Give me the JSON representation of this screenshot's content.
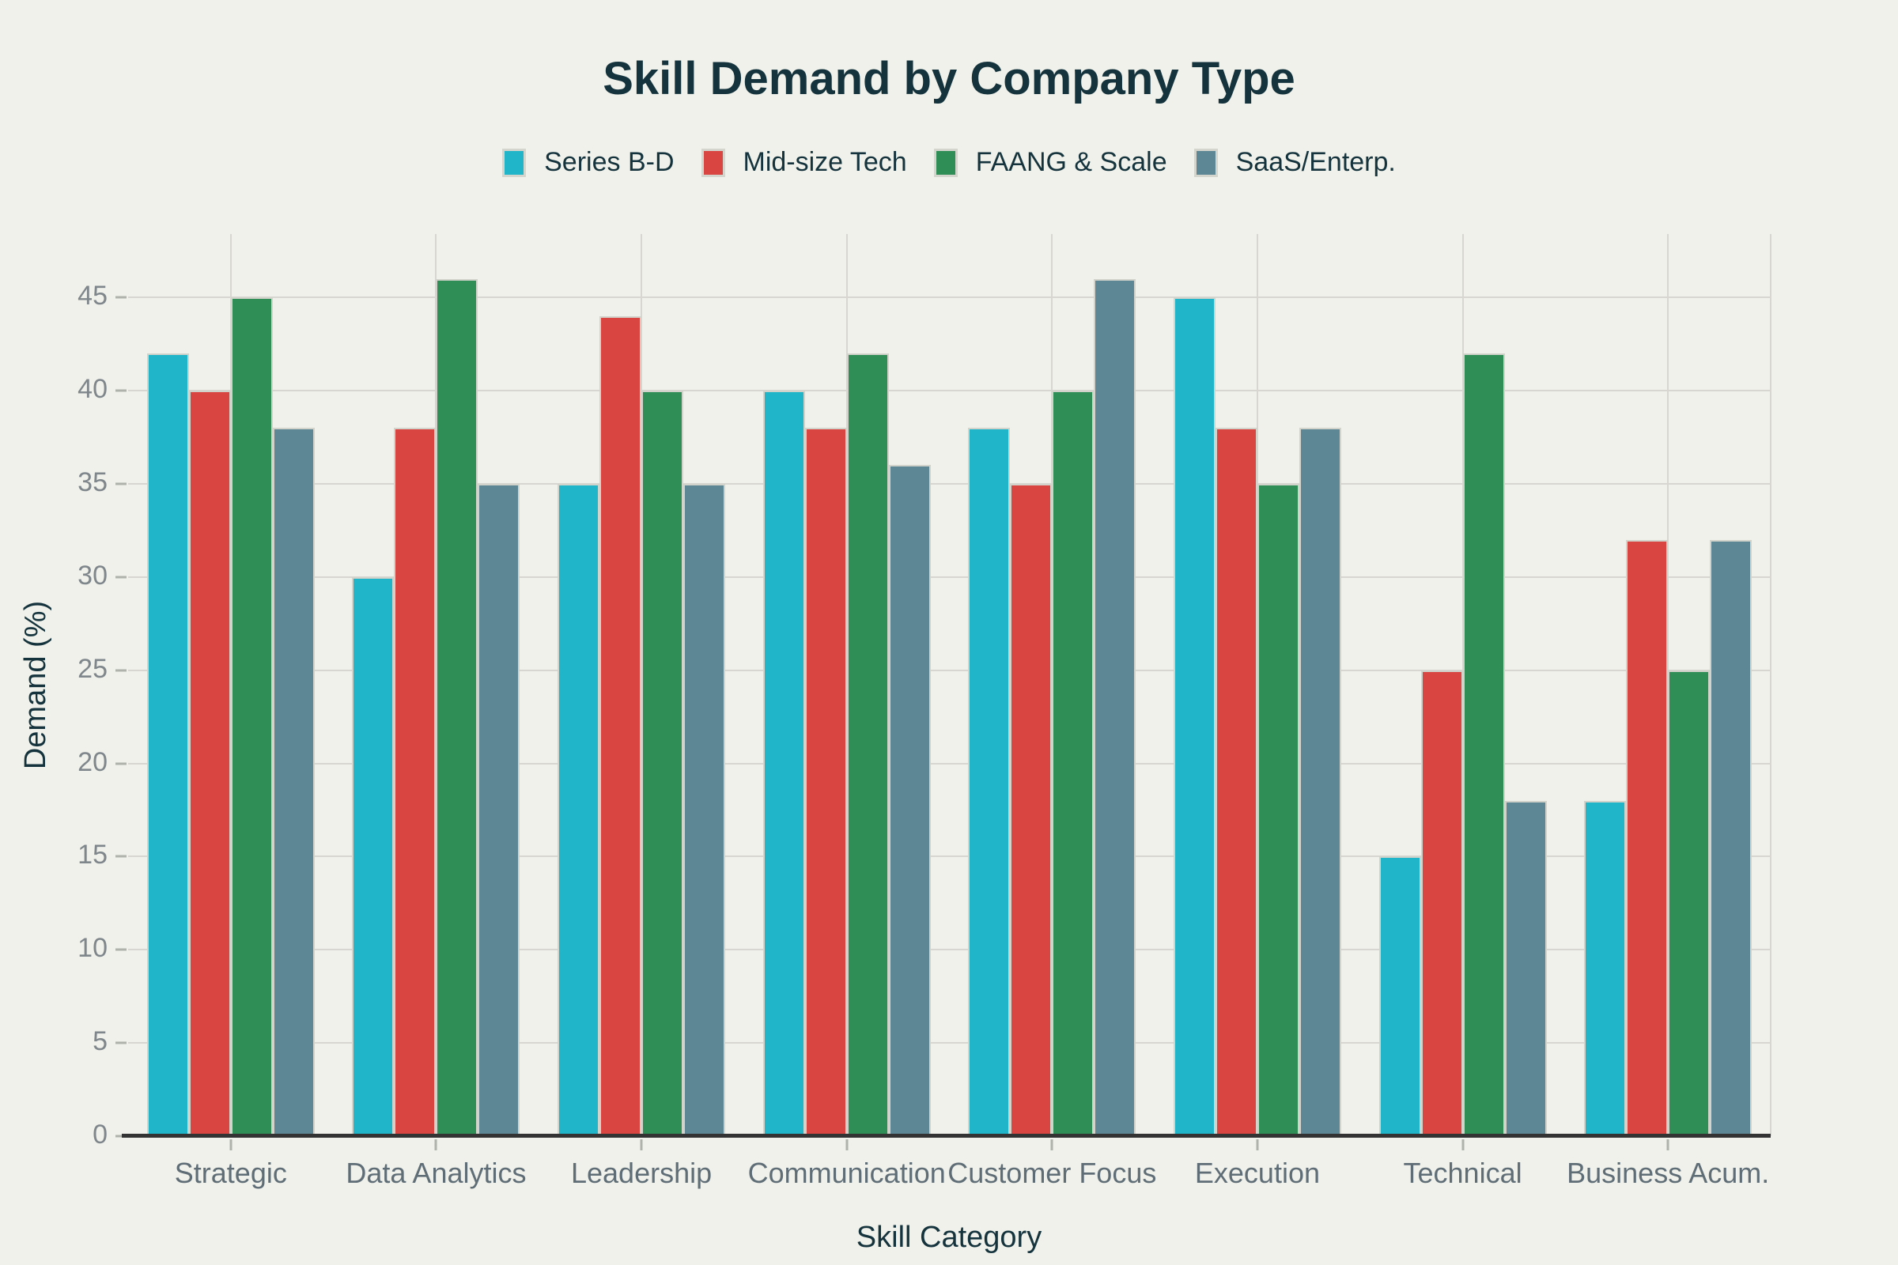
{
  "colors": {
    "background": "#f0f1ea",
    "title_text": "#15333d",
    "legend_text": "#15333d",
    "axis_title_text": "#15333d",
    "ytick_text": "#7f878c",
    "xtick_text": "#5f6d77",
    "gridline": "#d8d6d0",
    "axis_line": "#333333",
    "tick_mark": "#aeb2aa",
    "bar_border": "#d2d3ca",
    "swatch_border": "#d4d5cc"
  },
  "chart_data": {
    "type": "bar",
    "title": "Skill Demand by Company Type",
    "xlabel": "Skill Category",
    "ylabel": "Demand (%)",
    "categories": [
      "Strategic",
      "Data Analytics",
      "Leadership",
      "Communication",
      "Customer Focus",
      "Execution",
      "Technical",
      "Business Acum."
    ],
    "series": [
      {
        "name": "Series B-D",
        "color": "#21b5c9",
        "values": [
          42,
          30,
          35,
          40,
          38,
          45,
          15,
          18
        ]
      },
      {
        "name": "Mid-size Tech",
        "color": "#d94540",
        "values": [
          40,
          38,
          44,
          38,
          35,
          38,
          25,
          32
        ]
      },
      {
        "name": "FAANG & Scale",
        "color": "#2e8e55",
        "values": [
          45,
          46,
          40,
          42,
          40,
          35,
          42,
          25
        ]
      },
      {
        "name": "SaaS/Enterp.",
        "color": "#5d8794",
        "values": [
          38,
          35,
          35,
          36,
          46,
          38,
          18,
          32
        ]
      }
    ],
    "yticks": [
      0,
      5,
      10,
      15,
      20,
      25,
      30,
      35,
      40,
      45
    ],
    "ylim": [
      0,
      48.4
    ],
    "grid": true,
    "legend_position": "top-center"
  }
}
